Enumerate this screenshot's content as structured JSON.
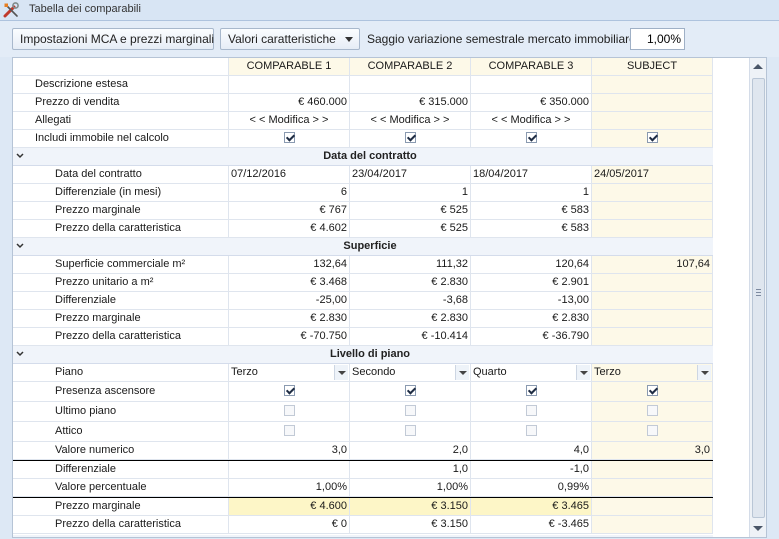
{
  "window": {
    "title": "Tabella dei comparabili"
  },
  "toolbar": {
    "mca_button": "Impostazioni MCA e prezzi marginali",
    "values_button": "Valori caratteristiche",
    "rate_label": "Saggio variazione semestrale mercato immobiliare:",
    "rate_value": "1,00%"
  },
  "columns": [
    "COMPARABLE 1",
    "COMPARABLE 2",
    "COMPARABLE 3",
    "SUBJECT"
  ],
  "top_rows": {
    "descrizione": {
      "label": "Descrizione estesa",
      "values": [
        "",
        "",
        "",
        ""
      ]
    },
    "prezzo_vendita": {
      "label": "Prezzo di vendita",
      "values": [
        "€ 460.000",
        "€ 315.000",
        "€ 350.000",
        ""
      ]
    },
    "allegati": {
      "label": "Allegati",
      "values": [
        "< < Modifica > >",
        "< < Modifica > >",
        "< < Modifica > >",
        ""
      ]
    },
    "includi": {
      "label": "Includi immobile nel calcolo",
      "checked": [
        true,
        true,
        true,
        true
      ]
    }
  },
  "sections": {
    "contratto": {
      "title": "Data del contratto",
      "rows": [
        {
          "label": "Data del contratto",
          "values": [
            "07/12/2016",
            "23/04/2017",
            "18/04/2017",
            "24/05/2017"
          ]
        },
        {
          "label": "Differenziale (in mesi)",
          "values": [
            "6",
            "1",
            "1",
            ""
          ]
        },
        {
          "label": "Prezzo marginale",
          "values": [
            "€ 767",
            "€ 525",
            "€ 583",
            ""
          ]
        },
        {
          "label": "Prezzo della caratteristica",
          "values": [
            "€ 4.602",
            "€ 525",
            "€ 583",
            ""
          ]
        }
      ]
    },
    "superficie": {
      "title": "Superficie",
      "rows": [
        {
          "label": "Superficie commerciale m²",
          "values": [
            "132,64",
            "111,32",
            "120,64",
            "107,64"
          ]
        },
        {
          "label": "Prezzo unitario a m²",
          "values": [
            "€ 3.468",
            "€ 2.830",
            "€ 2.901",
            ""
          ]
        },
        {
          "label": "Differenziale",
          "values": [
            "-25,00",
            "-3,68",
            "-13,00",
            ""
          ]
        },
        {
          "label": "Prezzo marginale",
          "values": [
            "€ 2.830",
            "€ 2.830",
            "€ 2.830",
            ""
          ]
        },
        {
          "label": "Prezzo della caratteristica",
          "values": [
            "€ -70.750",
            "€ -10.414",
            "€ -36.790",
            ""
          ]
        }
      ]
    },
    "livello": {
      "title": "Livello di piano",
      "piano": {
        "label": "Piano",
        "values": [
          "Terzo",
          "Secondo",
          "Quarto",
          "Terzo"
        ]
      },
      "ascensore": {
        "label": "Presenza ascensore",
        "checked": [
          true,
          true,
          true,
          true
        ]
      },
      "ultimo_piano": {
        "label": "Ultimo piano",
        "checked": [
          false,
          false,
          false,
          false
        ]
      },
      "attico": {
        "label": "Attico",
        "checked": [
          false,
          false,
          false,
          false
        ]
      },
      "valore_numerico": {
        "label": "Valore numerico",
        "values": [
          "3,0",
          "2,0",
          "4,0",
          "3,0"
        ]
      },
      "differenziale": {
        "label": "Differenziale",
        "values": [
          "",
          "1,0",
          "-1,0",
          ""
        ]
      },
      "valore_percentuale": {
        "label": "Valore percentuale",
        "values": [
          "1,00%",
          "1,00%",
          "0,99%",
          ""
        ]
      },
      "prezzo_marginale": {
        "label": "Prezzo marginale",
        "values": [
          "€ 4.600",
          "€ 3.150",
          "€ 3.465",
          ""
        ]
      },
      "prezzo_caratteristica": {
        "label": "Prezzo della caratteristica",
        "values": [
          "€ 0",
          "€ 3.150",
          "€ -3.465",
          ""
        ]
      }
    }
  }
}
